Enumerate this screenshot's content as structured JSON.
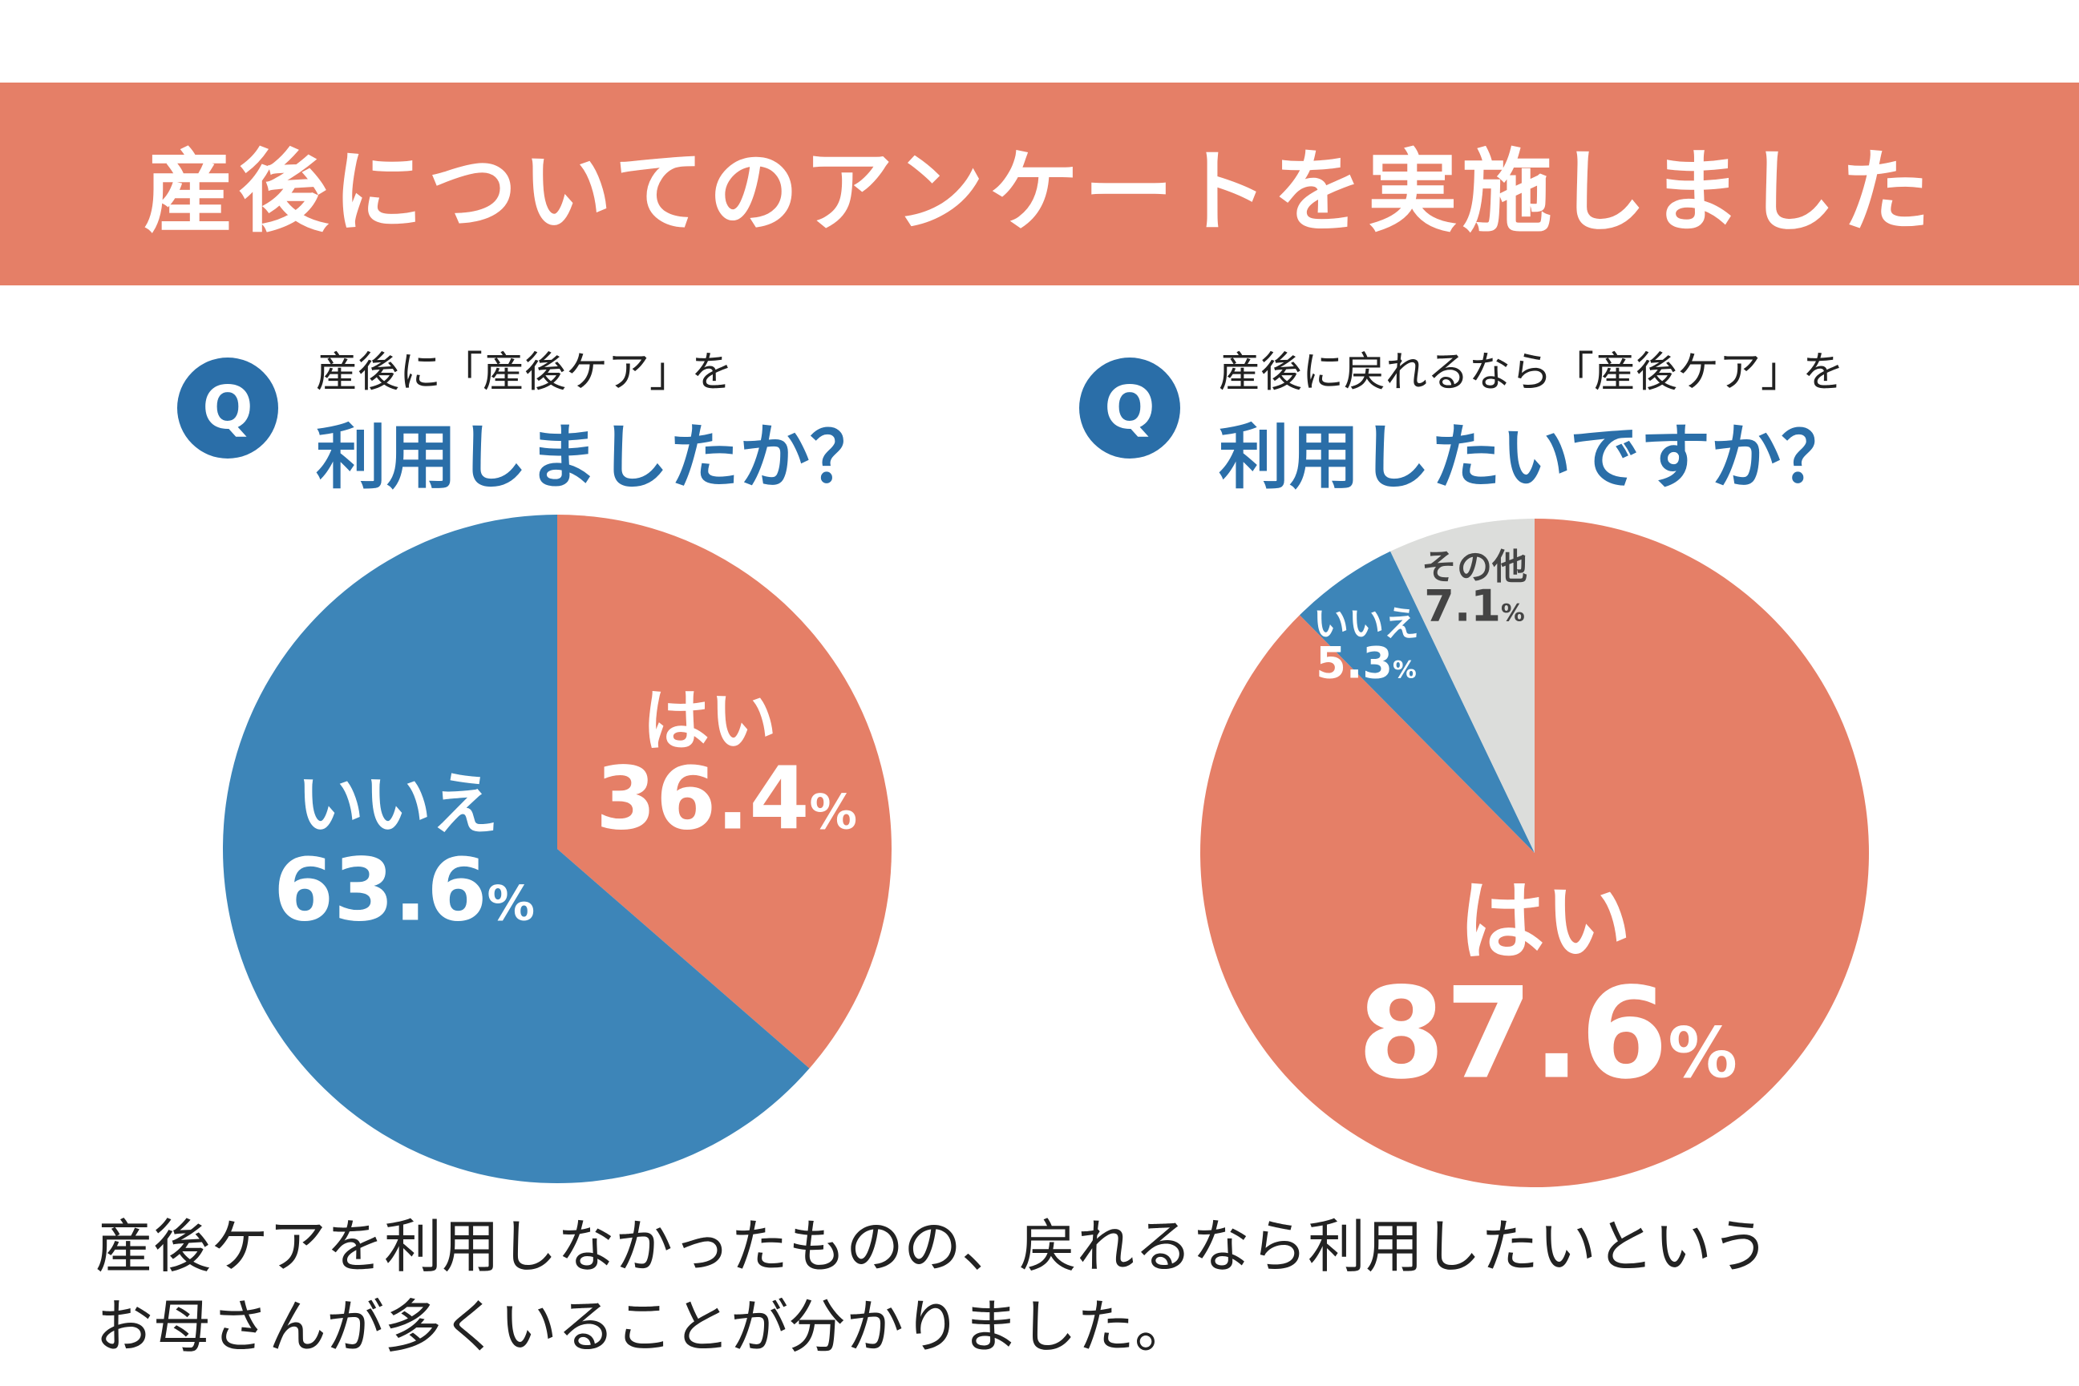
{
  "title": "産後についてのアンケートを実施しました",
  "q_icon": "Q",
  "colors": {
    "banner": "#e57f67",
    "yes": "#e57f67",
    "no": "#3d85b8",
    "other": "#dcdddb",
    "accent": "#2a6ea8"
  },
  "chart_data": [
    {
      "type": "pie",
      "title_line1": "産後に「産後ケア」を",
      "title_line2": "利用しましたか？",
      "slices": [
        {
          "label": "はい",
          "value": 36.4,
          "pct": "36.4",
          "color": "#e57f67"
        },
        {
          "label": "いいえ",
          "value": 63.6,
          "pct": "63.6",
          "color": "#3d85b8"
        }
      ]
    },
    {
      "type": "pie",
      "title_line1": "産後に戻れるなら「産後ケア」を",
      "title_line2": "利用したいですか？",
      "slices": [
        {
          "label": "はい",
          "value": 87.6,
          "pct": "87.6",
          "color": "#e57f67"
        },
        {
          "label": "いいえ",
          "value": 5.3,
          "pct": "5.3",
          "color": "#3d85b8"
        },
        {
          "label": "その他",
          "value": 7.1,
          "pct": "7.1",
          "color": "#dcdddb"
        }
      ]
    }
  ],
  "percent_sign": "%",
  "footer": {
    "line1": "産後ケアを利用しなかったものの、戻れるなら利用したいという",
    "line2": "お母さんが多くいることが分かりました。"
  }
}
